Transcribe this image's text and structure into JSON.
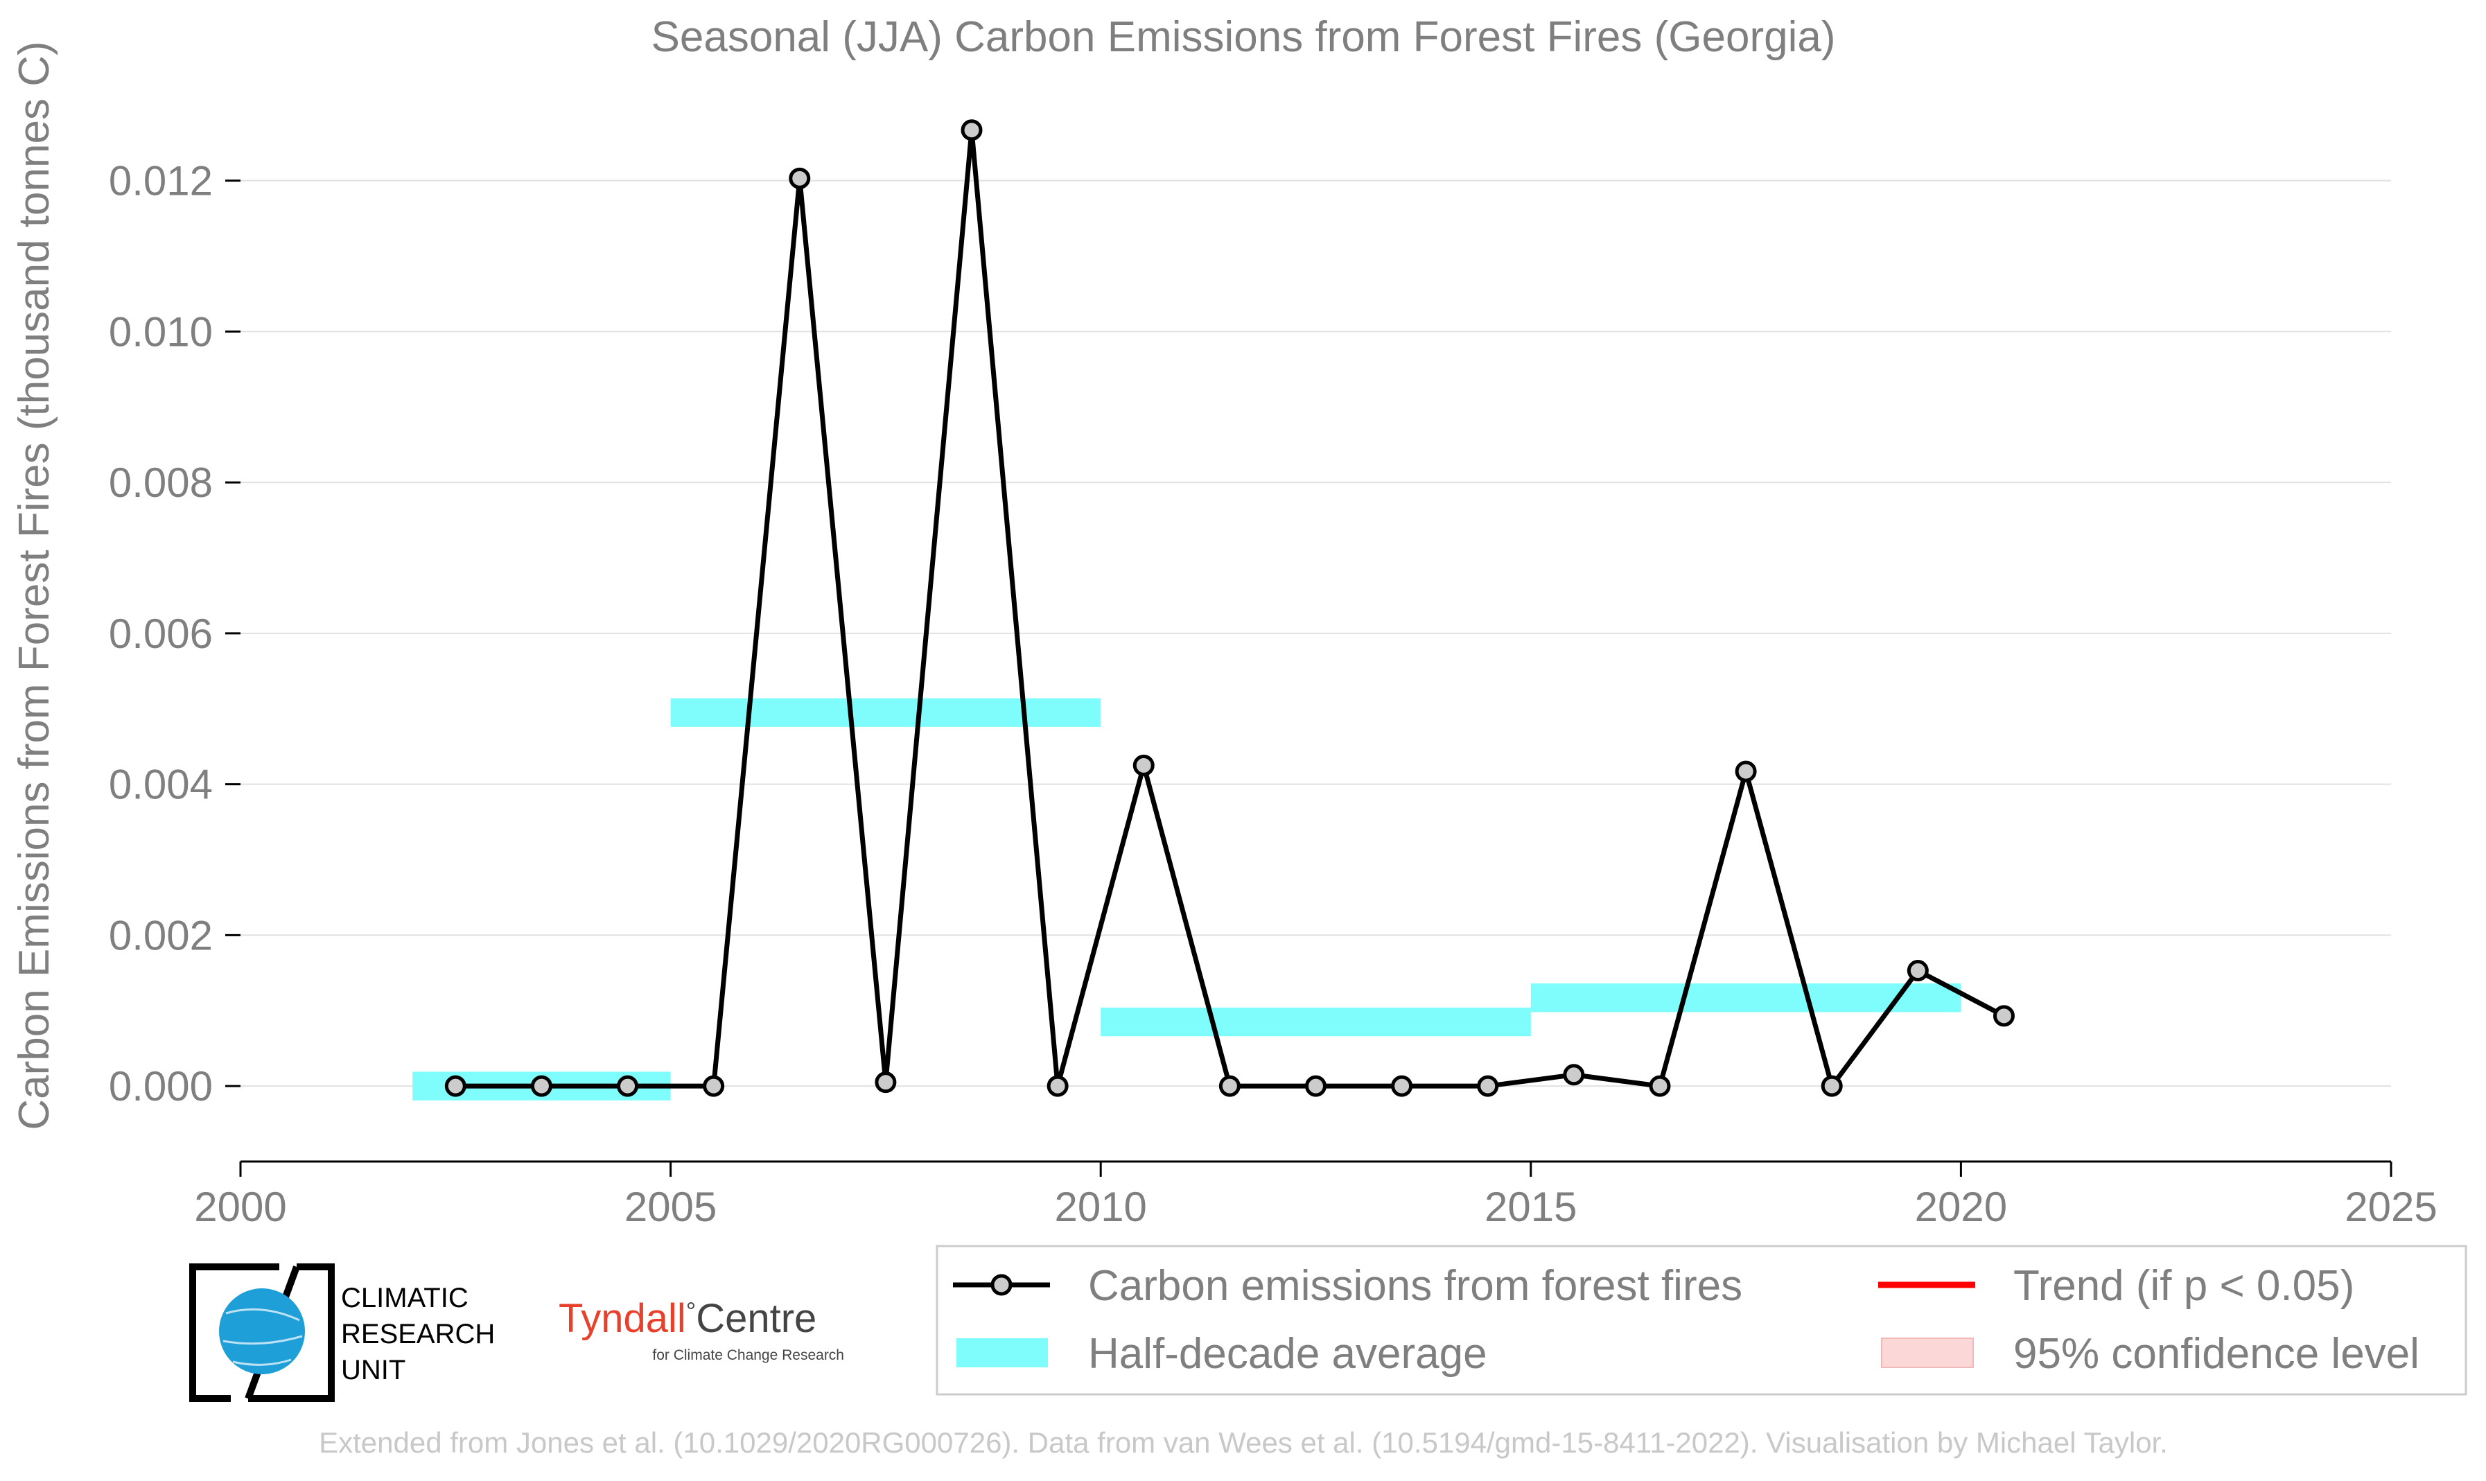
{
  "colors": {
    "series": "#000000",
    "marker_fill": "#cccccc",
    "half_decade": "#7ffdfd",
    "trend": "#ff0000",
    "confidence": "#fbd7d7",
    "grid": "#e1e1e1",
    "text": "#7f7f7f",
    "footer_text": "#c8c8c8",
    "logo_globe": "#1f9fd8",
    "tyndall_red": "#e8402a"
  },
  "logos": {
    "cru": {
      "lines": [
        "CLIMATIC",
        "RESEARCH",
        "UNIT"
      ]
    },
    "tyndall": {
      "name": "Tyndall",
      "degree": "°",
      "centre": "Centre",
      "subtitle": "for Climate Change Research"
    }
  },
  "footer": "Extended from Jones et al. (10.1029/2020RG000726). Data from van Wees et al. (10.5194/gmd-15-8411-2022). Visualisation by Michael Taylor.",
  "chart_data": {
    "type": "line",
    "title": "Seasonal (JJA) Carbon Emissions from Forest Fires (Georgia)",
    "xlabel": "",
    "ylabel": "Carbon Emissions from Forest Fires (thousand tonnes C)",
    "xlim": [
      2000,
      2025
    ],
    "ylim": [
      -0.001,
      0.0132
    ],
    "xticks": [
      2000,
      2005,
      2010,
      2015,
      2020,
      2025
    ],
    "yticks": [
      0.0,
      0.002,
      0.004,
      0.006,
      0.008,
      0.01,
      0.012
    ],
    "ytick_labels": [
      "0.000",
      "0.002",
      "0.004",
      "0.006",
      "0.008",
      "0.010",
      "0.012"
    ],
    "grid": "horizontal",
    "legend_position": "bottom-right",
    "series": [
      {
        "name": "Carbon emissions from forest fires",
        "type": "line",
        "x": [
          2002.5,
          2003.5,
          2004.5,
          2005.5,
          2006.5,
          2007.5,
          2008.5,
          2009.5,
          2010.5,
          2011.5,
          2012.5,
          2013.5,
          2014.5,
          2015.5,
          2016.5,
          2017.5,
          2018.5,
          2019.5,
          2020.5
        ],
        "y": [
          0.0,
          0.0,
          0.0,
          0.0,
          0.01203,
          5e-05,
          0.01267,
          0.0,
          0.00425,
          0.0,
          0.0,
          0.0,
          0.0,
          0.00015,
          0.0,
          0.00417,
          0.0,
          0.00153,
          0.00093
        ]
      },
      {
        "name": "Half-decade average",
        "type": "step",
        "segments": [
          {
            "x0": 2002,
            "x1": 2005,
            "y": 0.0
          },
          {
            "x0": 2005,
            "x1": 2010,
            "y": 0.00495
          },
          {
            "x0": 2010,
            "x1": 2015,
            "y": 0.00085
          },
          {
            "x0": 2015,
            "x1": 2020,
            "y": 0.00117
          }
        ]
      },
      {
        "name": "Trend (if p < 0.05)",
        "type": "line"
      },
      {
        "name": "95% confidence level",
        "type": "band"
      }
    ]
  }
}
